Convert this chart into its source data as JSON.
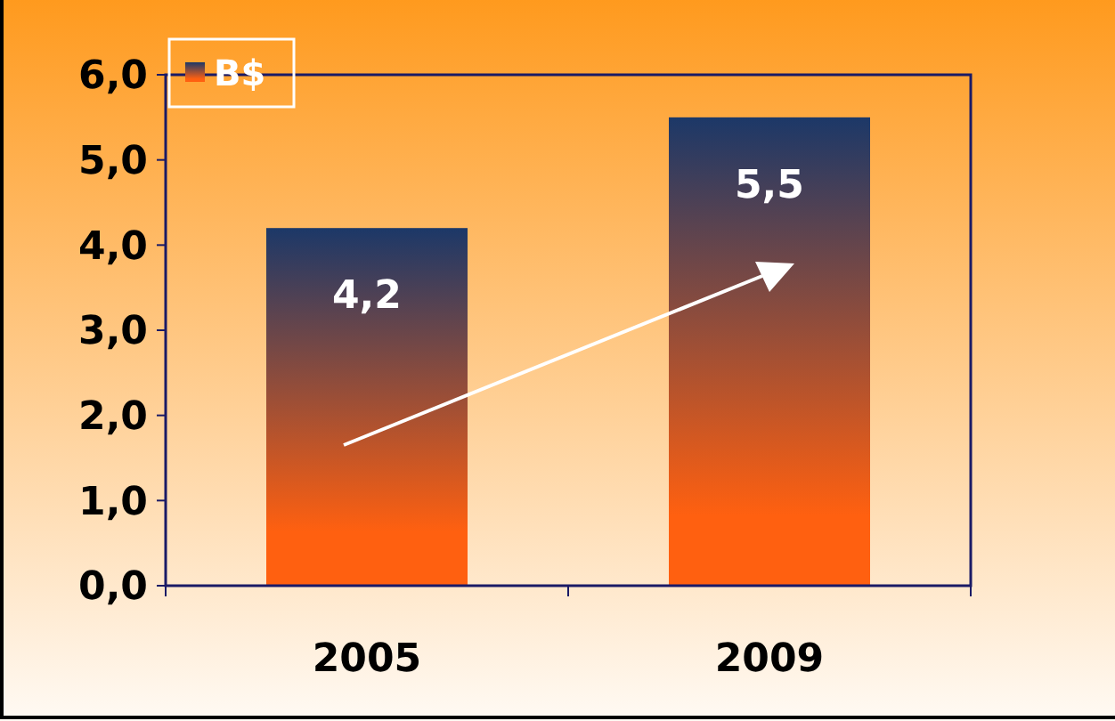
{
  "chart_data": {
    "type": "bar",
    "categories": [
      "2005",
      "2009"
    ],
    "series": [
      {
        "name": "B$",
        "color": "#1c3868",
        "values": [
          4.2,
          5.5
        ],
        "value_labels": [
          "4,2",
          "5,5"
        ]
      }
    ],
    "ylim": [
      0,
      6
    ],
    "yticks": [
      {
        "value": 0,
        "label": "0,0"
      },
      {
        "value": 1,
        "label": "1,0"
      },
      {
        "value": 2,
        "label": "2,0"
      },
      {
        "value": 3,
        "label": "3,0"
      },
      {
        "value": 4,
        "label": "4,0"
      },
      {
        "value": 5,
        "label": "5,0"
      },
      {
        "value": 6,
        "label": "6,0"
      }
    ],
    "grid": false,
    "legend": "top left"
  }
}
